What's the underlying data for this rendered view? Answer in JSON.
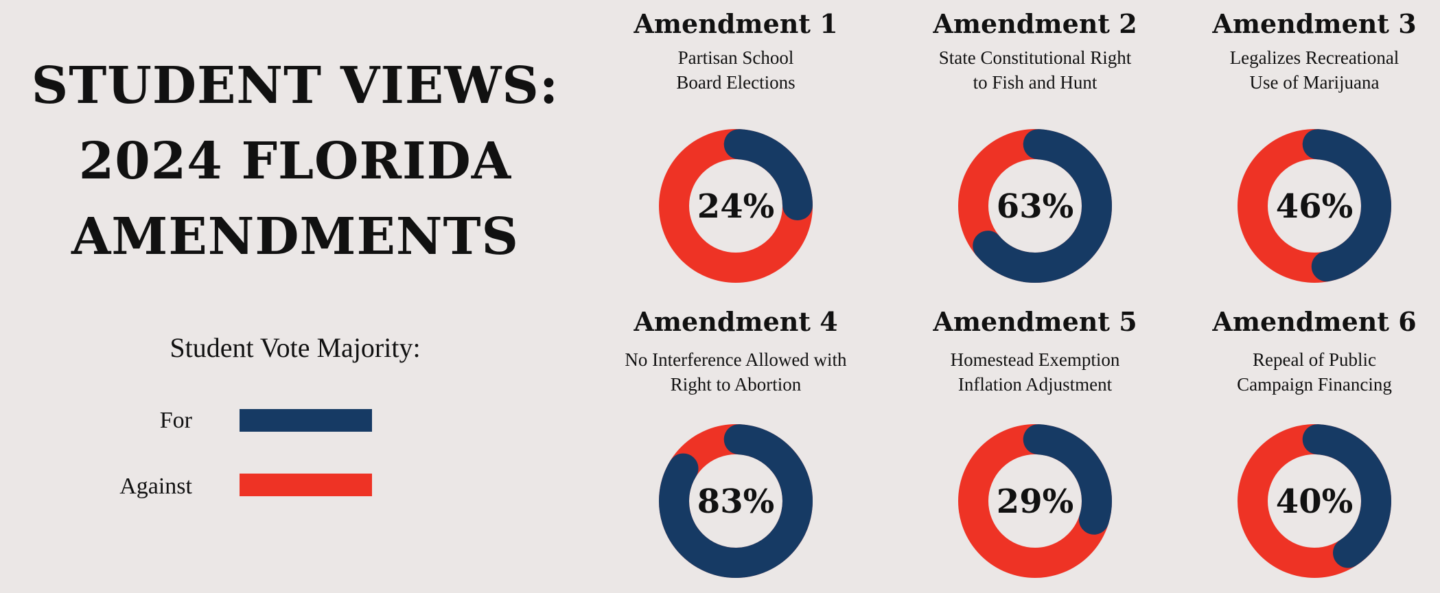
{
  "title_lines": [
    "STUDENT VIEWS:",
    "2024 FLORIDA",
    "AMENDMENTS"
  ],
  "legend": {
    "title": "Student Vote Majority:",
    "for_label": "For",
    "against_label": "Against"
  },
  "colors": {
    "for": "#163a64",
    "against": "#ee3325",
    "background": "#ebe7e6"
  },
  "chart_data": {
    "type": "pie",
    "variant": "donut",
    "title": "STUDENT VIEWS: 2024 FLORIDA AMENDMENTS",
    "legend_title": "Student Vote Majority:",
    "series": [
      {
        "name": "For",
        "color": "#163a64"
      },
      {
        "name": "Against",
        "color": "#ee3325"
      }
    ],
    "amendments": [
      {
        "title": "Amendment 1",
        "subtitle_lines": [
          "Partisan School",
          "Board Elections"
        ],
        "for_percent": 24,
        "label": "24%"
      },
      {
        "title": "Amendment 2",
        "subtitle_lines": [
          "State Constitutional Right",
          "to Fish and Hunt"
        ],
        "for_percent": 63,
        "label": "63%"
      },
      {
        "title": "Amendment 3",
        "subtitle_lines": [
          "Legalizes Recreational",
          "Use of Marijuana"
        ],
        "for_percent": 46,
        "label": "46%"
      },
      {
        "title": "Amendment 4",
        "subtitle_lines": [
          "No Interference Allowed with",
          "Right to Abortion"
        ],
        "for_percent": 83,
        "label": "83%"
      },
      {
        "title": "Amendment 5",
        "subtitle_lines": [
          "Homestead Exemption",
          "Inflation Adjustment"
        ],
        "for_percent": 29,
        "label": "29%"
      },
      {
        "title": "Amendment 6",
        "subtitle_lines": [
          "Repeal of Public",
          "Campaign Financing"
        ],
        "for_percent": 40,
        "label": "40%"
      }
    ]
  }
}
